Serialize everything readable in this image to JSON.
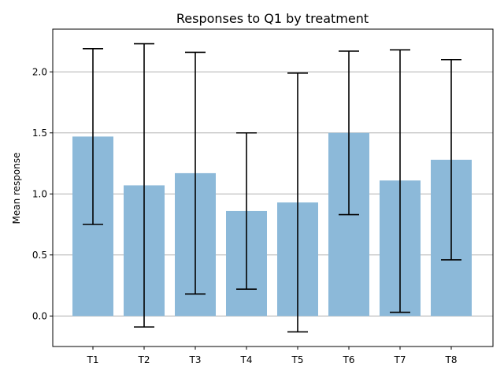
{
  "chart_data": {
    "type": "bar",
    "title": "Responses to Q1 by treatment",
    "xlabel": "",
    "ylabel": "Mean response",
    "categories": [
      "T1",
      "T2",
      "T3",
      "T4",
      "T5",
      "T6",
      "T7",
      "T8"
    ],
    "values": [
      1.47,
      1.07,
      1.17,
      0.86,
      0.93,
      1.5,
      1.11,
      1.28
    ],
    "error_low": [
      0.75,
      -0.09,
      0.18,
      0.22,
      -0.13,
      0.83,
      0.03,
      0.46
    ],
    "error_high": [
      2.19,
      2.23,
      2.16,
      1.5,
      1.99,
      2.17,
      2.18,
      2.1
    ],
    "ylim": [
      -0.25,
      2.35
    ],
    "yticks": [
      0.0,
      0.5,
      1.0,
      1.5,
      2.0
    ],
    "ytick_labels": [
      "0.0",
      "0.5",
      "1.0",
      "1.5",
      "2.0"
    ],
    "grid": "y-major",
    "colors": {
      "bar": "#8cb9d9",
      "error": "#000000",
      "grid": "#b0b0b0"
    }
  }
}
